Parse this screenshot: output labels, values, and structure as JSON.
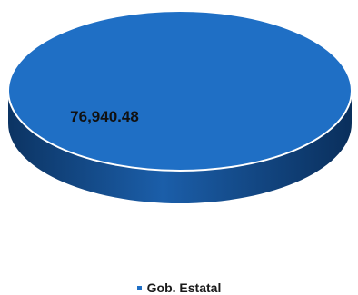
{
  "chart_data": {
    "type": "pie",
    "title": "",
    "slices": [
      {
        "label": "Gob. Estatal",
        "value": 76940.48,
        "display": "76,940.48",
        "color": "#1f6fc5"
      }
    ],
    "legend_position": "bottom"
  },
  "colors": {
    "top_face": "#1f6fc5",
    "side_dark": "#0e3f7a",
    "side_light": "#1a5ea8",
    "rim": "#ffffff"
  }
}
